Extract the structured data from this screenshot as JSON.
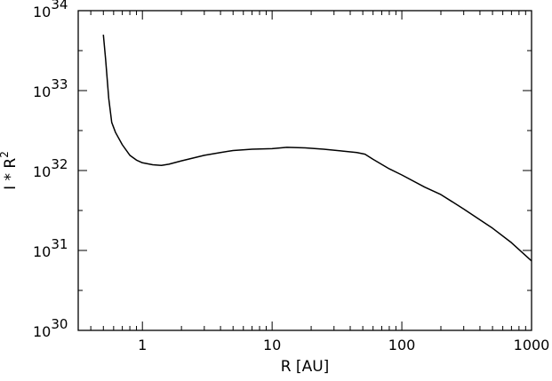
{
  "chart_data": {
    "type": "line",
    "xlabel": "R [AU]",
    "ylabel_main": "I * R",
    "ylabel_sup": "2",
    "x_scale": "log",
    "y_scale": "log",
    "xlim": [
      0.32,
      1000
    ],
    "ylim": [
      1e+30,
      1e+34
    ],
    "x_ticks": [
      {
        "value": 1,
        "label": "1"
      },
      {
        "value": 10,
        "label": "10"
      },
      {
        "value": 100,
        "label": "100"
      },
      {
        "value": 1000,
        "label": "1000"
      }
    ],
    "y_ticks": [
      {
        "value": 1e+30,
        "base": "10",
        "exp": "30"
      },
      {
        "value": 1e+31,
        "base": "10",
        "exp": "31"
      },
      {
        "value": 1e+32,
        "base": "10",
        "exp": "32"
      },
      {
        "value": 1e+33,
        "base": "10",
        "exp": "33"
      },
      {
        "value": 1e+34,
        "base": "10",
        "exp": "34"
      }
    ],
    "grid": false,
    "line_color": "#000000",
    "series": [
      {
        "x": [
          0.5,
          0.52,
          0.55,
          0.58,
          0.62,
          0.7,
          0.8,
          0.9,
          1.0,
          1.2,
          1.4,
          1.6,
          2.0,
          3.0,
          4.0,
          5.0,
          7.0,
          10.0,
          13.0,
          18.0,
          25.0,
          35.0,
          45.0,
          52.0,
          60.0,
          80.0,
          100.0,
          150.0,
          200.0,
          300.0,
          500.0,
          700.0,
          1000.0
        ],
        "y": [
          5e+33,
          2.5e+33,
          8e+32,
          4e+32,
          3e+32,
          2.1e+32,
          1.55e+32,
          1.35e+32,
          1.25e+32,
          1.18e+32,
          1.16e+32,
          1.2e+32,
          1.32e+32,
          1.55e+32,
          1.68e+32,
          1.78e+32,
          1.85e+32,
          1.88e+32,
          1.95e+32,
          1.92e+32,
          1.85e+32,
          1.75e+32,
          1.68e+32,
          1.6e+32,
          1.38e+32,
          1.05e+32,
          8.8e+31,
          6.2e+31,
          5e+31,
          3.3e+31,
          1.9e+31,
          1.25e+31,
          7.4e+30
        ]
      }
    ]
  }
}
